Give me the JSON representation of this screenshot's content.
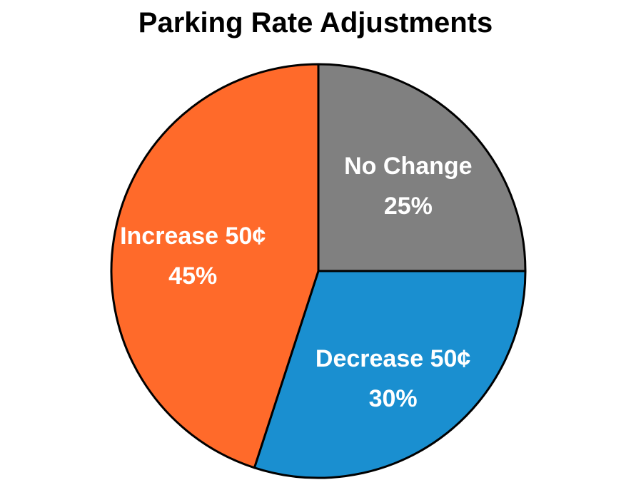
{
  "chart_data": {
    "type": "pie",
    "title": "Parking Rate Adjustments",
    "slices": [
      {
        "label": "No Change",
        "value": 25,
        "value_label": "25%",
        "color": "#808080"
      },
      {
        "label": "Decrease 50¢",
        "value": 30,
        "value_label": "30%",
        "color": "#1a8fd0"
      },
      {
        "label": "Increase 50¢",
        "value": 45,
        "value_label": "45%",
        "color": "#ff6a2a"
      }
    ],
    "start_angle": "12 o'clock",
    "direction": "clockwise",
    "outline_color": "#000000"
  }
}
